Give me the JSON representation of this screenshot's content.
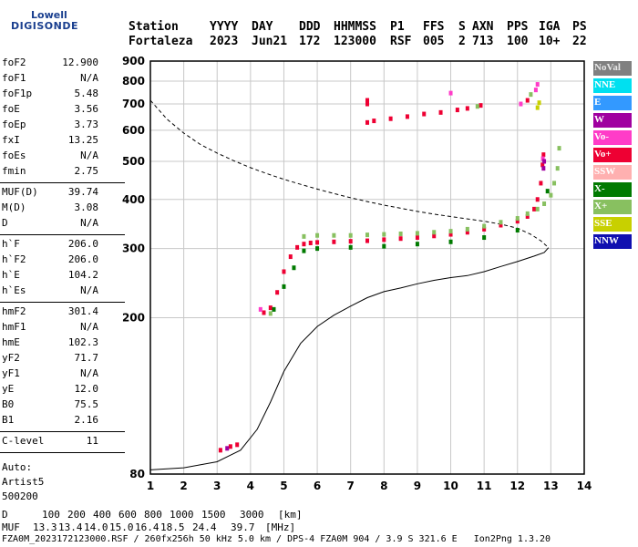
{
  "logo": {
    "line1": "Lowell",
    "line2": "DIGISONDE"
  },
  "header": {
    "labels": [
      "Station",
      "YYYY",
      "DAY",
      "DDD",
      "HHMMSS",
      "P1",
      "FFS",
      "S",
      "AXN",
      "PPS",
      "IGA",
      "PS"
    ],
    "values": [
      "Fortaleza",
      "2023",
      "Jun21",
      "172",
      "123000",
      "RSF",
      "005",
      "2",
      "713",
      "100",
      "10+",
      "22"
    ]
  },
  "params_group1": [
    {
      "name": "foF2",
      "value": "12.900"
    },
    {
      "name": "foF1",
      "value": "N/A"
    },
    {
      "name": "foF1p",
      "value": "5.48"
    },
    {
      "name": "foE",
      "value": "3.56"
    },
    {
      "name": "foEp",
      "value": "3.73"
    },
    {
      "name": "fxI",
      "value": "13.25"
    },
    {
      "name": "foEs",
      "value": "N/A"
    },
    {
      "name": "fmin",
      "value": "2.75"
    }
  ],
  "params_group2": [
    {
      "name": "MUF(D)",
      "value": "39.74"
    },
    {
      "name": "M(D)",
      "value": "3.08"
    },
    {
      "name": "D",
      "value": "N/A"
    }
  ],
  "params_group3": [
    {
      "name": "h`F",
      "value": "206.0"
    },
    {
      "name": "h`F2",
      "value": "206.0"
    },
    {
      "name": "h`E",
      "value": "104.2"
    },
    {
      "name": "h`Es",
      "value": "N/A"
    }
  ],
  "params_group4": [
    {
      "name": "hmF2",
      "value": "301.4"
    },
    {
      "name": "hmF1",
      "value": "N/A"
    },
    {
      "name": "hmE",
      "value": "102.3"
    },
    {
      "name": "yF2",
      "value": "71.7"
    },
    {
      "name": "yF1",
      "value": "N/A"
    },
    {
      "name": "yE",
      "value": "12.0"
    },
    {
      "name": "B0",
      "value": "75.5"
    },
    {
      "name": "B1",
      "value": "2.16"
    }
  ],
  "params_group5": [
    {
      "name": "C-level",
      "value": "11"
    }
  ],
  "auto_info": [
    "Auto:",
    "Artist5",
    "500200"
  ],
  "legend": [
    {
      "label": "NoVal",
      "color": "#808080",
      "text_color": "#e8e8e8"
    },
    {
      "label": "NNE",
      "color": "#00e0f0",
      "text_color": "#ffffff"
    },
    {
      "label": "E",
      "color": "#3399ff",
      "text_color": "#ffffff"
    },
    {
      "label": "W",
      "color": "#a000a0",
      "text_color": "#ffffff"
    },
    {
      "label": "Vo-",
      "color": "#ff3cc8",
      "text_color": "#ffffff"
    },
    {
      "label": "Vo+",
      "color": "#ee0033",
      "text_color": "#ffffff"
    },
    {
      "label": "SSW",
      "color": "#ffb0b0",
      "text_color": "#ffffff"
    },
    {
      "label": "X-",
      "color": "#007a00",
      "text_color": "#ffffff"
    },
    {
      "label": "X+",
      "color": "#88c060",
      "text_color": "#ffffff"
    },
    {
      "label": "SSE",
      "color": "#c8d000",
      "text_color": "#ffffff"
    },
    {
      "label": "NNW",
      "color": "#1010b0",
      "text_color": "#ffffff"
    }
  ],
  "chart_data": {
    "type": "scatter",
    "title": "",
    "xlabel": "",
    "ylabel": "",
    "xlim": [
      1,
      14
    ],
    "ylim": [
      80,
      900
    ],
    "xticks": [
      1,
      2,
      3,
      4,
      5,
      6,
      7,
      8,
      9,
      10,
      11,
      12,
      13,
      14
    ],
    "yticks": [
      80,
      200,
      300,
      400,
      500,
      600,
      700,
      800,
      900
    ],
    "y_scale": "log",
    "grid": true,
    "series": [
      {
        "color": "#ee0033",
        "points": [
          [
            4.4,
            206
          ],
          [
            4.6,
            212
          ],
          [
            4.8,
            232
          ],
          [
            5.0,
            262
          ],
          [
            5.2,
            286
          ],
          [
            5.4,
            302
          ],
          [
            5.6,
            308
          ],
          [
            5.8,
            310
          ],
          [
            6.0,
            311
          ],
          [
            6.5,
            312
          ],
          [
            7.0,
            313
          ],
          [
            7.5,
            314
          ],
          [
            8.0,
            316
          ],
          [
            8.5,
            318
          ],
          [
            9.0,
            320
          ],
          [
            9.5,
            323
          ],
          [
            10.0,
            326
          ],
          [
            10.5,
            330
          ],
          [
            11.0,
            336
          ],
          [
            11.5,
            344
          ],
          [
            12.0,
            352
          ],
          [
            12.3,
            362
          ],
          [
            12.5,
            378
          ],
          [
            12.6,
            400
          ],
          [
            12.7,
            440
          ],
          [
            12.75,
            490
          ],
          [
            12.78,
            520
          ],
          [
            3.1,
            92
          ],
          [
            3.4,
            94
          ],
          [
            3.6,
            95
          ],
          [
            7.5,
            628
          ],
          [
            7.7,
            634
          ],
          [
            8.2,
            642
          ],
          [
            8.7,
            650
          ],
          [
            9.2,
            660
          ],
          [
            9.7,
            666
          ],
          [
            10.2,
            676
          ],
          [
            10.5,
            682
          ],
          [
            10.9,
            694
          ],
          [
            7.5,
            700
          ],
          [
            7.5,
            715
          ],
          [
            12.3,
            715
          ]
        ]
      },
      {
        "color": "#88c060",
        "points": [
          [
            5.6,
            322
          ],
          [
            6.0,
            324
          ],
          [
            6.5,
            324
          ],
          [
            7.0,
            324
          ],
          [
            7.5,
            325
          ],
          [
            8.0,
            326
          ],
          [
            8.5,
            327
          ],
          [
            9.0,
            328
          ],
          [
            9.5,
            330
          ],
          [
            10.0,
            332
          ],
          [
            10.5,
            336
          ],
          [
            11.0,
            342
          ],
          [
            11.5,
            350
          ],
          [
            12.0,
            358
          ],
          [
            12.3,
            368
          ],
          [
            12.6,
            378
          ],
          [
            12.8,
            390
          ],
          [
            13.0,
            410
          ],
          [
            13.1,
            440
          ],
          [
            13.2,
            480
          ],
          [
            13.25,
            540
          ],
          [
            10.8,
            690
          ],
          [
            12.4,
            740
          ],
          [
            4.6,
            205
          ]
        ]
      },
      {
        "color": "#007a00",
        "points": [
          [
            4.7,
            210
          ],
          [
            5.0,
            240
          ],
          [
            5.3,
            268
          ],
          [
            5.6,
            296
          ],
          [
            6.0,
            300
          ],
          [
            7.0,
            302
          ],
          [
            8.0,
            304
          ],
          [
            9.0,
            308
          ],
          [
            10.0,
            312
          ],
          [
            11.0,
            320
          ],
          [
            12.0,
            334
          ],
          [
            12.9,
            420
          ]
        ]
      },
      {
        "color": "#ff3cc8",
        "points": [
          [
            10.0,
            746
          ],
          [
            12.55,
            760
          ],
          [
            12.6,
            785
          ],
          [
            4.3,
            210
          ],
          [
            12.76,
            508
          ],
          [
            12.1,
            700
          ]
        ]
      },
      {
        "color": "#a000a0",
        "points": [
          [
            12.78,
            480
          ],
          [
            12.8,
            500
          ],
          [
            3.3,
            93
          ]
        ]
      },
      {
        "color": "#c8d000",
        "points": [
          [
            12.6,
            685
          ],
          [
            12.65,
            705
          ]
        ]
      }
    ],
    "lines": [
      {
        "style": "solid",
        "points": [
          [
            1.0,
            82
          ],
          [
            2.0,
            83
          ],
          [
            3.0,
            86
          ],
          [
            3.7,
            92
          ],
          [
            4.2,
            104
          ],
          [
            4.6,
            122
          ],
          [
            5.0,
            146
          ],
          [
            5.5,
            172
          ],
          [
            6.0,
            190
          ],
          [
            6.5,
            203
          ],
          [
            7.0,
            214
          ],
          [
            7.5,
            225
          ],
          [
            8.0,
            233
          ],
          [
            8.5,
            238
          ],
          [
            9.0,
            244
          ],
          [
            9.5,
            249
          ],
          [
            10.0,
            253
          ],
          [
            10.5,
            256
          ],
          [
            11.0,
            262
          ],
          [
            11.5,
            270
          ],
          [
            12.0,
            278
          ],
          [
            12.5,
            287
          ],
          [
            12.8,
            293
          ],
          [
            12.93,
            301.4
          ]
        ]
      },
      {
        "style": "dashed",
        "points": [
          [
            1.0,
            715
          ],
          [
            1.5,
            640
          ],
          [
            2.0,
            590
          ],
          [
            2.5,
            552
          ],
          [
            3.0,
            525
          ],
          [
            3.5,
            502
          ],
          [
            4.0,
            482
          ],
          [
            4.5,
            465
          ],
          [
            5.0,
            450
          ],
          [
            5.5,
            437
          ],
          [
            6.0,
            425
          ],
          [
            6.5,
            414
          ],
          [
            7.0,
            404
          ],
          [
            7.5,
            395
          ],
          [
            8.0,
            387
          ],
          [
            8.5,
            380
          ],
          [
            9.0,
            373
          ],
          [
            9.5,
            367
          ],
          [
            10.0,
            362
          ],
          [
            10.5,
            357
          ],
          [
            11.0,
            352
          ],
          [
            11.5,
            346
          ],
          [
            12.0,
            338
          ],
          [
            12.4,
            326
          ],
          [
            12.7,
            314
          ],
          [
            12.93,
            301.4
          ]
        ]
      }
    ]
  },
  "bottom": {
    "row1_label": "D",
    "distances": [
      "100",
      "200",
      "400",
      "600",
      "800",
      "1000",
      "1500",
      "3000"
    ],
    "distance_unit": "[km]",
    "row2_label": "MUF",
    "mufs": [
      "13.3",
      "13.4",
      "14.0",
      "15.0",
      "16.4",
      "18.5",
      "24.4",
      "39.7"
    ],
    "muf_unit": "[MHz]",
    "footer": "FZA0M_2023172123000.RSF / 260fx256h 50 kHz 5.0 km / DPS-4 FZA0M 904 / 3.9 S 321.6 E   Ion2Png 1.3.20"
  }
}
